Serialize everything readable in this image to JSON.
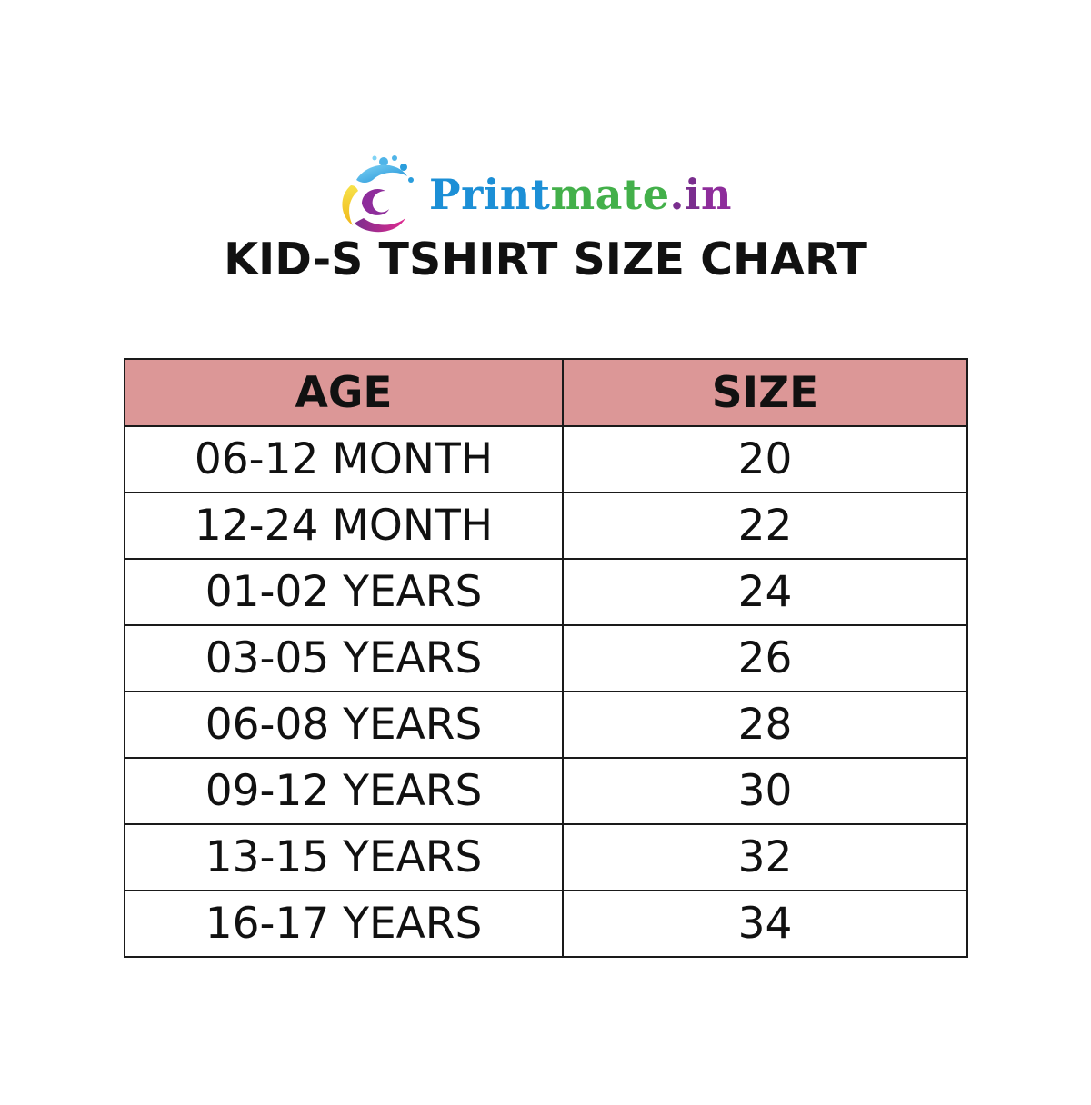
{
  "brand": {
    "part1": "Print",
    "part2": "mate",
    "part3": ".i",
    "part4": "n",
    "logo_icon": "swirl-logo-icon",
    "colors": {
      "blue": "#1c8fd6",
      "green": "#43b04a",
      "purple": "#8e2d9b",
      "magenta": "#d3268f",
      "yellow": "#f3d21b"
    }
  },
  "title": "KID-S TSHIRT SIZE CHART",
  "table": {
    "header_color": "#dc9797",
    "headers": [
      "AGE",
      "SIZE"
    ],
    "rows": [
      [
        "06-12 MONTH",
        "20"
      ],
      [
        "12-24 MONTH",
        "22"
      ],
      [
        "01-02 YEARS",
        "24"
      ],
      [
        "03-05 YEARS",
        "26"
      ],
      [
        "06-08 YEARS",
        "28"
      ],
      [
        "09-12 YEARS",
        "30"
      ],
      [
        "13-15 YEARS",
        "32"
      ],
      [
        "16-17 YEARS",
        "34"
      ]
    ]
  }
}
